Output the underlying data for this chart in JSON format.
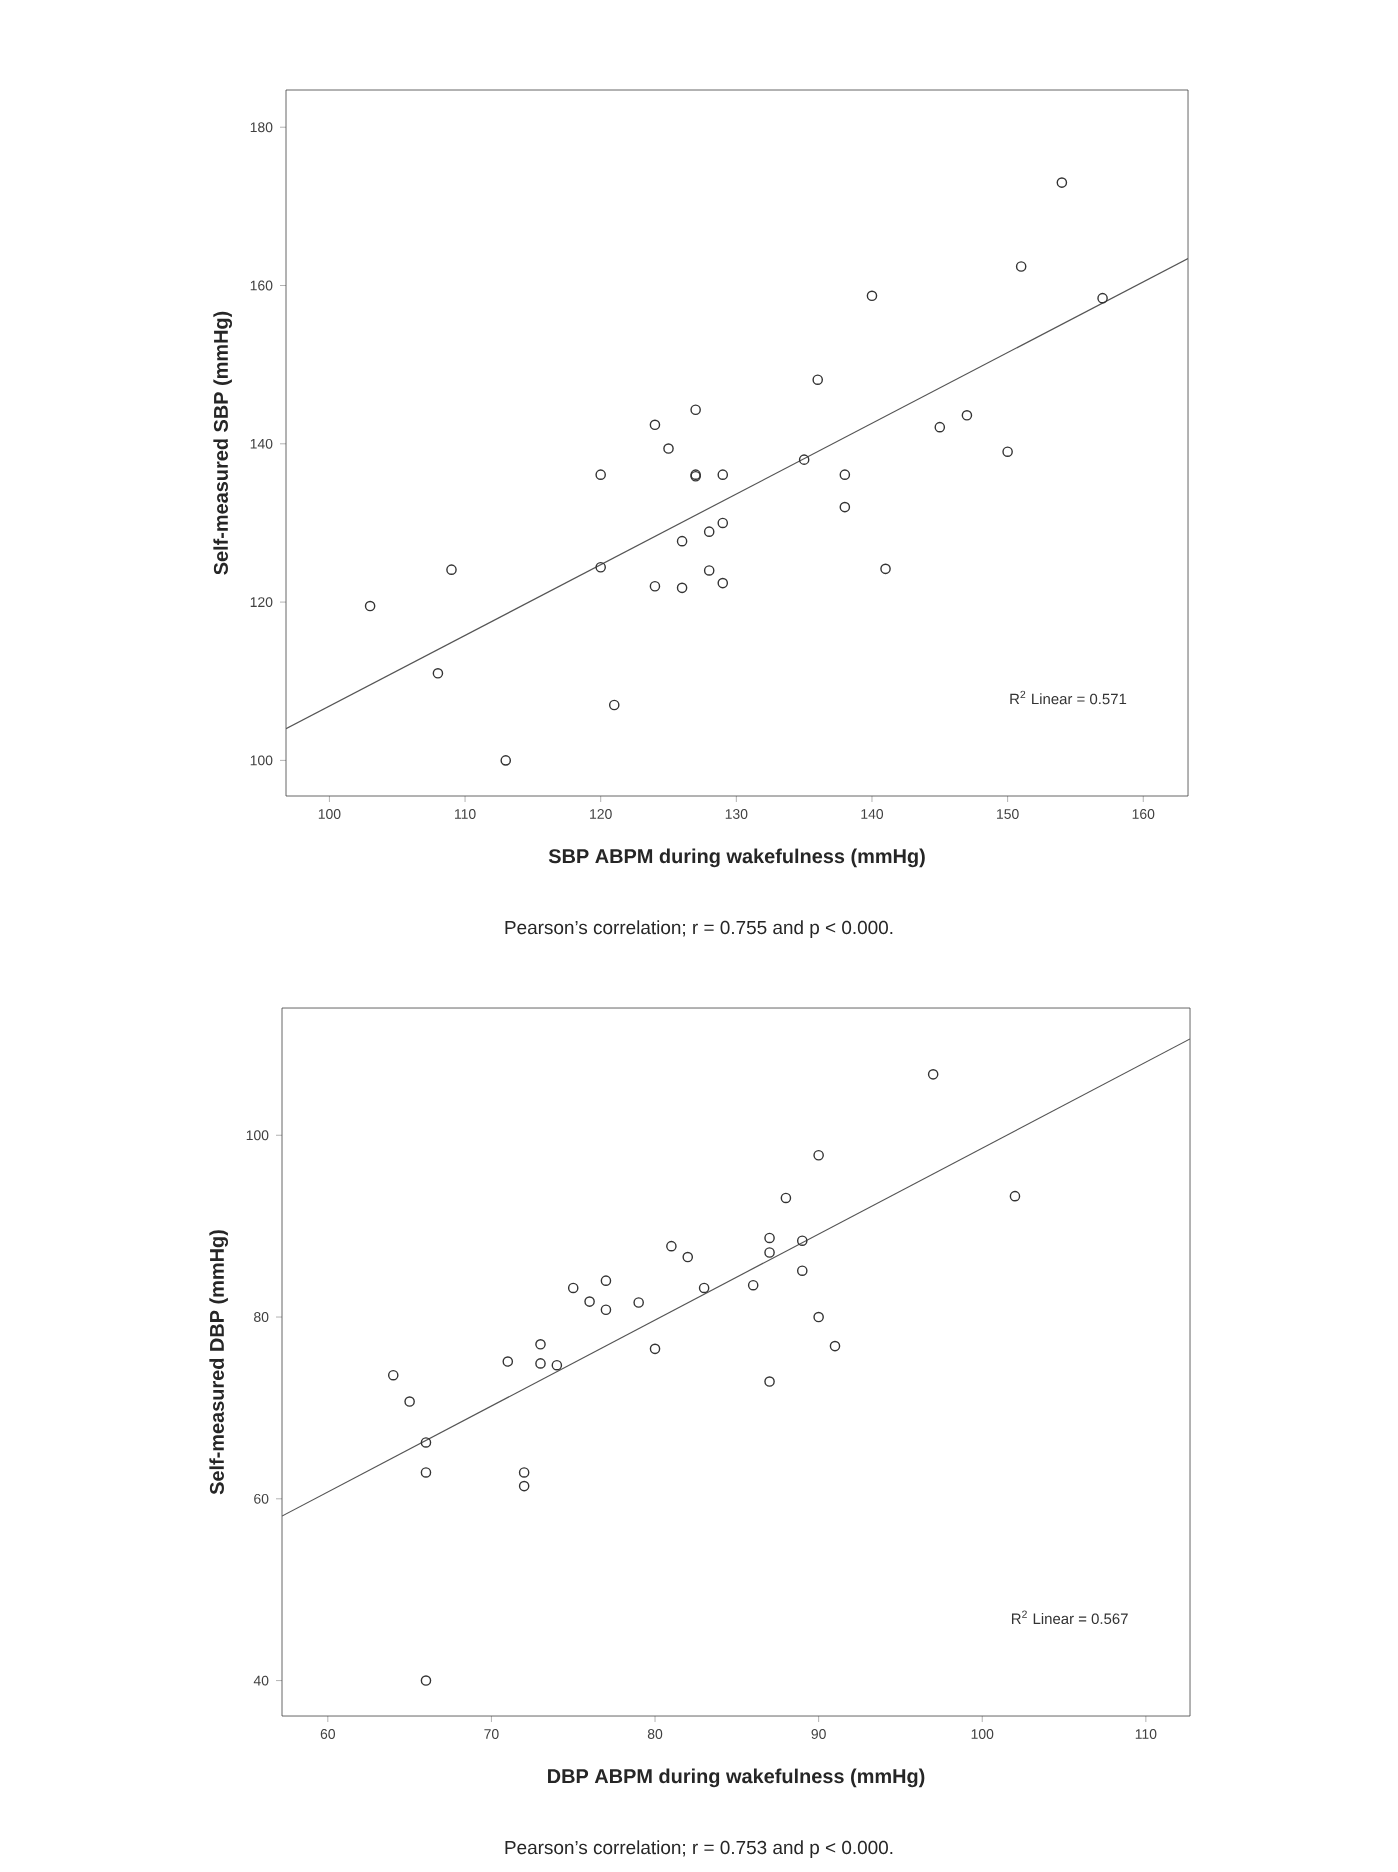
{
  "chart_data": [
    {
      "type": "scatter",
      "xlabel": "SBP ABPM during wakefulness (mmHg)",
      "ylabel": "Self-measured SBP (mmHg)",
      "xlim": [
        96.8,
        163.3
      ],
      "ylim": [
        95.5,
        184.7
      ],
      "xticks": [
        100,
        110,
        120,
        130,
        140,
        150,
        160
      ],
      "yticks": [
        100,
        120,
        140,
        160,
        180
      ],
      "grid": false,
      "series": [
        {
          "marker": "circle",
          "color": "#333333",
          "x": [
            103,
            108,
            109,
            113,
            120,
            120,
            121,
            124,
            124,
            125,
            126,
            126,
            127,
            127,
            127,
            128,
            128,
            129,
            129,
            129,
            135,
            136,
            138,
            138,
            140,
            141,
            145,
            147,
            150,
            151,
            154,
            157
          ],
          "values": [
            119.5,
            111,
            124.1,
            100,
            136.1,
            124.4,
            107,
            142.4,
            122,
            139.4,
            127.7,
            121.8,
            144.3,
            135.9,
            136.1,
            128.9,
            124,
            136.1,
            130,
            122.4,
            138,
            148.1,
            136.1,
            132,
            158.7,
            124.2,
            142.1,
            143.6,
            139,
            162.4,
            173,
            158.4
          ]
        },
        {
          "type": "line",
          "color": "#555555",
          "line_style": "solid",
          "x": [
            96.8,
            163.3
          ],
          "values": [
            104,
            163.4
          ]
        }
      ],
      "annotations": [
        "R$^{2}$ Linear = 0.571",
        "Pearson’s correlation; r = 0.755 and p < 0.000."
      ]
    },
    {
      "type": "scatter",
      "xlabel": "DBP ABPM during wakefulness (mmHg)",
      "ylabel": "Self-measured DBP (mmHg)",
      "xlim": [
        57.2,
        112.7
      ],
      "ylim": [
        36.1,
        114
      ],
      "xticks": [
        60,
        70,
        80,
        90,
        100,
        110
      ],
      "yticks": [
        40,
        60,
        80,
        100
      ],
      "grid": false,
      "series": [
        {
          "marker": "circle",
          "color": "#333333",
          "x": [
            64,
            65,
            66,
            66,
            66,
            71,
            72,
            72,
            73,
            73,
            74,
            75,
            76,
            77,
            77,
            79,
            80,
            81,
            82,
            83,
            86,
            87,
            87,
            87,
            88,
            89,
            89,
            90,
            90,
            91,
            97,
            102
          ],
          "values": [
            73.6,
            70.7,
            66.2,
            62.9,
            40,
            75.1,
            62.9,
            61.4,
            77,
            74.9,
            74.7,
            83.2,
            81.7,
            84,
            80.8,
            81.6,
            76.5,
            87.8,
            86.6,
            83.2,
            83.5,
            88.7,
            87.1,
            72.9,
            93.1,
            88.4,
            85.1,
            97.8,
            80,
            76.8,
            106.7,
            93.3
          ]
        },
        {
          "type": "line",
          "color": "#555555",
          "line_style": "solid",
          "x": [
            57.2,
            112.7
          ],
          "values": [
            58.1,
            110.6
          ]
        }
      ],
      "annotations": [
        "R$^{2}$ Linear = 0.567",
        "Pearson’s correlation; r = 0.753 and p < 0.000."
      ]
    }
  ]
}
